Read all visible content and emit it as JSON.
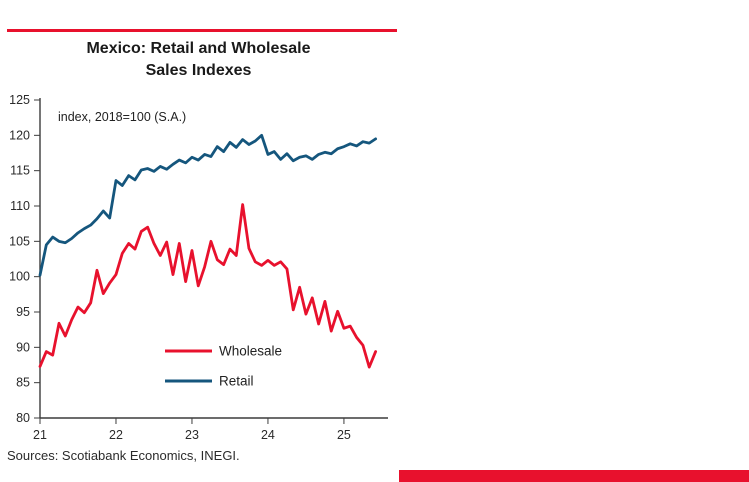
{
  "page": {
    "background": "#ffffff"
  },
  "header": {
    "top_rule_color": "#e8112d"
  },
  "chart_data": {
    "type": "line",
    "title": "Mexico: Retail and Wholesale Sales Indexes",
    "annotation": "index, 2018=100 (S.A.)",
    "xlim": [
      21,
      25.58
    ],
    "ylim": [
      80,
      125
    ],
    "x_tick_labels": [
      "21",
      "22",
      "23",
      "24",
      "25"
    ],
    "x_tick_values": [
      21,
      22,
      23,
      24,
      25
    ],
    "y_ticks": [
      80,
      85,
      90,
      95,
      100,
      105,
      110,
      115,
      120,
      125
    ],
    "grid": false,
    "legend_position": "inside-bottom-center",
    "x": [
      21.0,
      21.083,
      21.167,
      21.25,
      21.333,
      21.417,
      21.5,
      21.583,
      21.667,
      21.75,
      21.833,
      21.917,
      22.0,
      22.083,
      22.167,
      22.25,
      22.333,
      22.417,
      22.5,
      22.583,
      22.667,
      22.75,
      22.833,
      22.917,
      23.0,
      23.083,
      23.167,
      23.25,
      23.333,
      23.417,
      23.5,
      23.583,
      23.667,
      23.75,
      23.833,
      23.917,
      24.0,
      24.083,
      24.167,
      24.25,
      24.333,
      24.417,
      24.5,
      24.583,
      24.667,
      24.75,
      24.833,
      24.917,
      25.0,
      25.083,
      25.167,
      25.25,
      25.333,
      25.417
    ],
    "series": [
      {
        "name": "Wholesale",
        "color": "#e8112d",
        "values": [
          87.3,
          89.4,
          88.9,
          93.4,
          91.6,
          93.9,
          95.7,
          94.9,
          96.3,
          100.9,
          97.6,
          99.1,
          100.3,
          103.3,
          104.7,
          103.9,
          106.4,
          107.0,
          104.7,
          103.0,
          104.9,
          100.3,
          104.7,
          99.3,
          103.7,
          98.7,
          101.4,
          105.0,
          102.4,
          101.7,
          103.9,
          103.0,
          110.2,
          104.0,
          102.1,
          101.6,
          102.3,
          101.6,
          102.1,
          101.1,
          95.3,
          98.5,
          94.7,
          97.0,
          93.3,
          96.5,
          92.3,
          95.1,
          92.7,
          93.0,
          91.4,
          90.3,
          87.2,
          89.4
        ]
      },
      {
        "name": "Retail",
        "color": "#15567d",
        "values": [
          100.2,
          104.5,
          105.6,
          105.0,
          104.8,
          105.4,
          106.2,
          106.8,
          107.3,
          108.2,
          109.3,
          108.3,
          113.6,
          112.9,
          114.3,
          113.7,
          115.1,
          115.3,
          114.9,
          115.6,
          115.2,
          115.9,
          116.5,
          116.1,
          116.9,
          116.5,
          117.3,
          117.0,
          118.4,
          117.7,
          119.0,
          118.3,
          119.4,
          118.7,
          119.2,
          120.0,
          117.3,
          117.7,
          116.6,
          117.4,
          116.4,
          116.9,
          117.1,
          116.6,
          117.3,
          117.6,
          117.4,
          118.1,
          118.4,
          118.8,
          118.5,
          119.1,
          118.9,
          119.5
        ]
      }
    ]
  },
  "footer": {
    "sources": "Sources: Scotiabank Economics, INEGI.",
    "bottom_bar_color": "#e8112d"
  }
}
